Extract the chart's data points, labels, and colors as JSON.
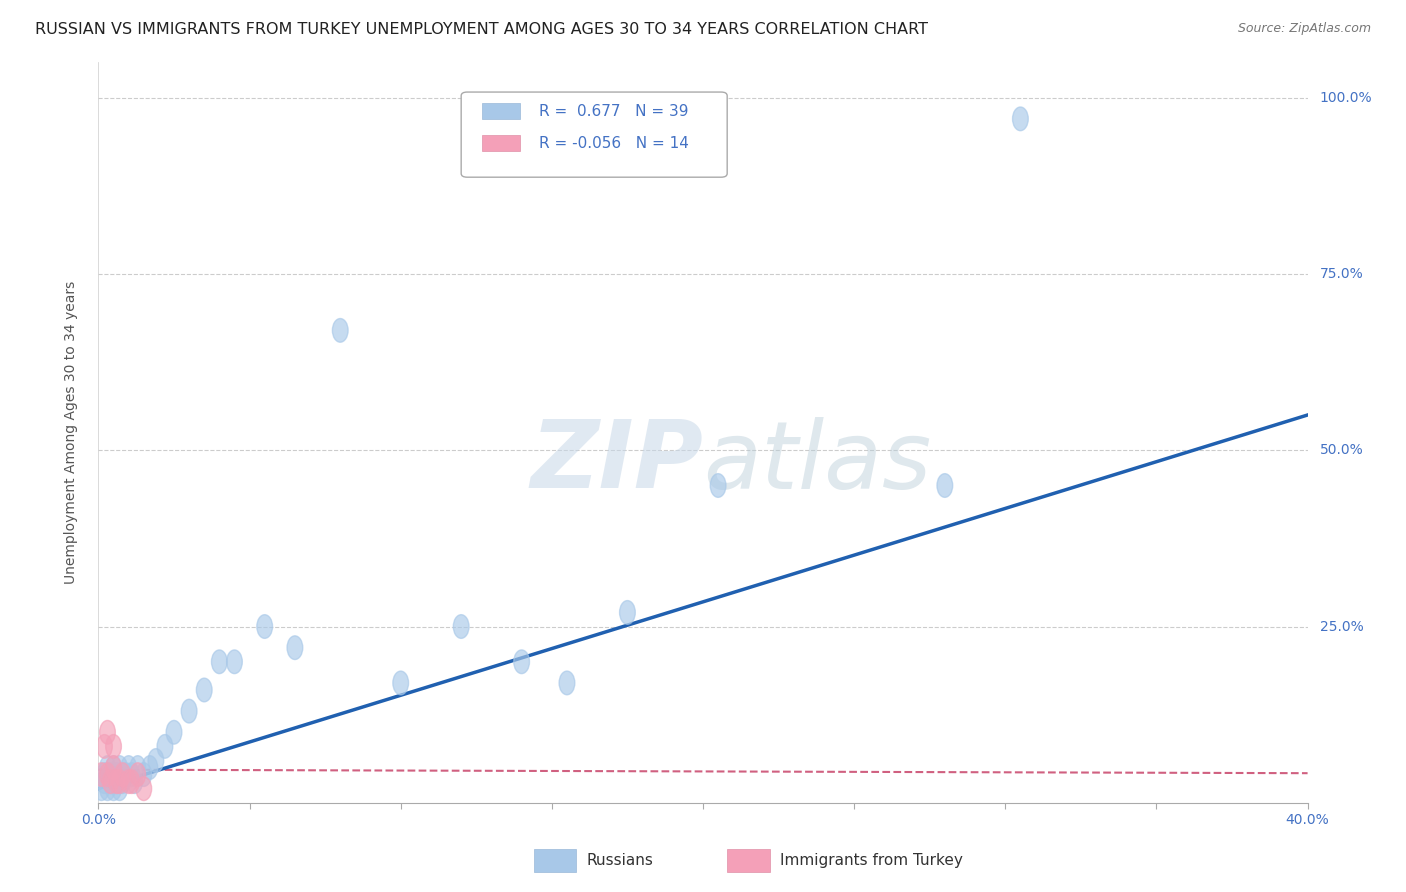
{
  "title": "RUSSIAN VS IMMIGRANTS FROM TURKEY UNEMPLOYMENT AMONG AGES 30 TO 34 YEARS CORRELATION CHART",
  "source": "Source: ZipAtlas.com",
  "ylabel_label": "Unemployment Among Ages 30 to 34 years",
  "xlim": [
    0.0,
    0.4
  ],
  "ylim": [
    0.0,
    1.05
  ],
  "legend_r_russian": "0.677",
  "legend_n_russian": "39",
  "legend_r_turkey": "-0.056",
  "legend_n_turkey": "14",
  "russian_scatter_x": [
    0.001,
    0.002,
    0.002,
    0.003,
    0.003,
    0.004,
    0.004,
    0.005,
    0.005,
    0.006,
    0.006,
    0.007,
    0.007,
    0.008,
    0.009,
    0.01,
    0.011,
    0.012,
    0.013,
    0.015,
    0.017,
    0.019,
    0.022,
    0.025,
    0.03,
    0.035,
    0.04,
    0.045,
    0.055,
    0.065,
    0.08,
    0.1,
    0.12,
    0.14,
    0.155,
    0.175,
    0.205,
    0.28,
    0.305
  ],
  "russian_scatter_y": [
    0.02,
    0.03,
    0.04,
    0.02,
    0.05,
    0.03,
    0.04,
    0.02,
    0.05,
    0.03,
    0.04,
    0.02,
    0.05,
    0.03,
    0.04,
    0.05,
    0.04,
    0.03,
    0.05,
    0.04,
    0.05,
    0.06,
    0.08,
    0.1,
    0.13,
    0.16,
    0.2,
    0.2,
    0.25,
    0.22,
    0.67,
    0.17,
    0.25,
    0.2,
    0.17,
    0.27,
    0.45,
    0.45,
    0.97
  ],
  "turkey_scatter_x": [
    0.001,
    0.002,
    0.003,
    0.003,
    0.004,
    0.005,
    0.005,
    0.006,
    0.007,
    0.008,
    0.01,
    0.011,
    0.013,
    0.015
  ],
  "turkey_scatter_y": [
    0.04,
    0.08,
    0.1,
    0.04,
    0.03,
    0.05,
    0.08,
    0.03,
    0.03,
    0.04,
    0.03,
    0.03,
    0.04,
    0.02
  ],
  "russian_line_x0": 0.0,
  "russian_line_y0": 0.02,
  "russian_line_x1": 0.4,
  "russian_line_y1": 0.55,
  "turkey_line_x0": 0.0,
  "turkey_line_y0": 0.047,
  "turkey_line_x1": 0.4,
  "turkey_line_y1": 0.042,
  "scatter_color_russian": "#a8c8e8",
  "scatter_color_turkey": "#f4a0b8",
  "line_color_russian": "#2060b0",
  "line_color_turkey": "#d06080",
  "background_color": "#ffffff",
  "watermark_zip": "ZIP",
  "watermark_atlas": "atlas",
  "title_fontsize": 11.5,
  "axis_label_fontsize": 10,
  "tick_fontsize": 10,
  "legend_fontsize": 11
}
